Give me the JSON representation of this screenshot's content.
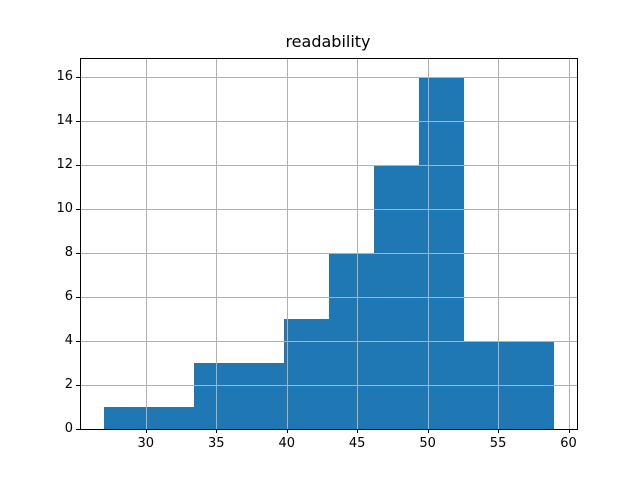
{
  "chart_data": {
    "type": "bar",
    "subtype": "histogram",
    "title": "readability",
    "xlabel": "",
    "ylabel": "",
    "bin_edges": [
      27.0,
      30.2,
      33.4,
      36.6,
      39.8,
      43.0,
      46.2,
      49.4,
      52.6,
      55.8,
      59.0
    ],
    "values": [
      1,
      1,
      3,
      3,
      5,
      8,
      12,
      16,
      4,
      4
    ],
    "xticks": [
      30,
      35,
      40,
      45,
      50,
      55,
      60
    ],
    "yticks": [
      0,
      2,
      4,
      6,
      8,
      10,
      12,
      14,
      16
    ],
    "xlim": [
      25.4,
      60.6
    ],
    "ylim": [
      0,
      16.8
    ],
    "grid": true,
    "grid_on_top": true,
    "legend": null,
    "colors": {
      "bar": "#1f77b4",
      "grid": "#b0b0b0",
      "axis": "#000000",
      "background": "#ffffff",
      "text": "#000000"
    }
  }
}
